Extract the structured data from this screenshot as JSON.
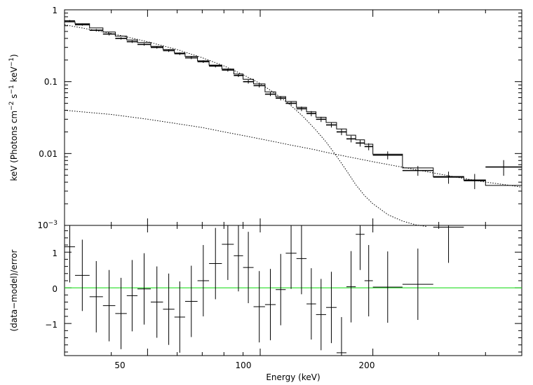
{
  "chart_data": [
    {
      "type": "line",
      "panel": "top",
      "xscale": "log",
      "yscale": "log",
      "xlim": [
        30,
        500
      ],
      "ylim": [
        0.001,
        1
      ],
      "xlabel": "Energy (keV)",
      "ylabel": "keV (Photons cm^-2 s^-1 keV^-1)",
      "ylabel_parts": {
        "base": "keV (Photons cm",
        "e1": "−2",
        "mid": " s",
        "e2": "−1",
        "mid2": " keV",
        "e3": "−1",
        "end": ")"
      },
      "ytick_labels": [
        "1",
        "0.1",
        "0.01",
        "10^-3"
      ],
      "ytick_values": [
        1,
        0.1,
        0.01,
        0.001
      ],
      "bin_edges": [
        30,
        32,
        35,
        38,
        41,
        44,
        47,
        51,
        55,
        59,
        63,
        68,
        73,
        79,
        85,
        90,
        96,
        103,
        110,
        117,
        125,
        133,
        141,
        150,
        160,
        170,
        180,
        190,
        200,
        240,
        290,
        350,
        400,
        500
      ],
      "series": [
        {
          "role": "data",
          "y": [
            0.7,
            0.62,
            0.52,
            0.46,
            0.4,
            0.36,
            0.33,
            0.3,
            0.27,
            0.245,
            0.215,
            0.19,
            0.165,
            0.145,
            0.122,
            0.1,
            0.088,
            0.067,
            0.059,
            0.05,
            0.042,
            0.036,
            0.03,
            0.025,
            0.02,
            0.016,
            0.014,
            0.0125,
            0.0095,
            0.0058,
            0.0047,
            0.0042,
            0.0065
          ],
          "yerr": [
            0.02,
            0.02,
            0.02,
            0.02,
            0.015,
            0.014,
            0.013,
            0.012,
            0.011,
            0.01,
            0.009,
            0.008,
            0.007,
            0.007,
            0.006,
            0.006,
            0.005,
            0.004,
            0.004,
            0.003,
            0.003,
            0.003,
            0.0025,
            0.002,
            0.002,
            0.0017,
            0.0015,
            0.0014,
            0.0012,
            0.0009,
            0.0009,
            0.001,
            0.0016
          ]
        },
        {
          "role": "model",
          "y": [
            0.68,
            0.64,
            0.56,
            0.49,
            0.43,
            0.38,
            0.35,
            0.31,
            0.28,
            0.25,
            0.225,
            0.195,
            0.17,
            0.15,
            0.128,
            0.108,
            0.093,
            0.072,
            0.062,
            0.053,
            0.044,
            0.038,
            0.032,
            0.027,
            0.022,
            0.018,
            0.0155,
            0.0135,
            0.0098,
            0.0063,
            0.0048,
            0.0043,
            0.0036
          ]
        },
        {
          "role": "component-1",
          "x": [
            30,
            40,
            50,
            60,
            70,
            80,
            90,
            100,
            110,
            120,
            130,
            140,
            150,
            160,
            170,
            180,
            190,
            200,
            220,
            240,
            260,
            280
          ],
          "y": [
            0.62,
            0.47,
            0.36,
            0.28,
            0.215,
            0.166,
            0.125,
            0.094,
            0.068,
            0.048,
            0.033,
            0.022,
            0.0145,
            0.0092,
            0.0058,
            0.0037,
            0.0026,
            0.002,
            0.0014,
            0.00115,
            0.00102,
            0.00096
          ]
        },
        {
          "role": "component-2",
          "x": [
            30,
            40,
            50,
            60,
            70,
            80,
            90,
            100,
            110,
            120,
            130,
            140,
            150,
            160,
            170,
            180,
            200,
            250,
            300,
            350,
            400,
            450,
            500
          ],
          "y": [
            0.04,
            0.035,
            0.03,
            0.026,
            0.023,
            0.02,
            0.0178,
            0.016,
            0.0145,
            0.0132,
            0.0122,
            0.0113,
            0.0104,
            0.0097,
            0.0091,
            0.0086,
            0.0077,
            0.0062,
            0.0052,
            0.0045,
            0.004,
            0.0037,
            0.0034
          ]
        }
      ]
    },
    {
      "type": "scatter",
      "panel": "bottom",
      "xscale": "log",
      "xlim": [
        30,
        500
      ],
      "ylim": [
        -1.9,
        1.75
      ],
      "xlabel": "Energy (keV)",
      "ylabel": "(data−model)/error",
      "xtick_labels": [
        "50",
        "100",
        "200"
      ],
      "xtick_values": [
        50,
        100,
        200
      ],
      "ytick_labels": [
        "1",
        "0",
        "−1"
      ],
      "ytick_values": [
        1,
        0,
        -1
      ],
      "reference_line": {
        "y": 0,
        "color": "#22dd22"
      },
      "bin_edges": [
        30,
        32,
        35,
        38,
        41,
        44,
        47,
        51,
        55,
        59,
        63,
        68,
        73,
        79,
        85,
        90,
        96,
        103,
        110,
        117,
        125,
        133,
        141,
        150,
        160,
        170,
        180,
        190,
        200,
        240,
        290,
        350,
        400,
        500
      ],
      "residuals": [
        1.15,
        0.35,
        -0.25,
        -0.5,
        -0.72,
        -0.22,
        -0.03,
        -0.4,
        -0.6,
        -0.82,
        -0.38,
        0.2,
        0.68,
        1.22,
        0.9,
        0.57,
        -0.53,
        -0.47,
        -0.05,
        0.97,
        0.82,
        -0.45,
        -0.75,
        -0.55,
        -1.82,
        0.03,
        1.5,
        0.2,
        0.02,
        0.1,
        1.7,
        0.0,
        0.0
      ],
      "errors": [
        1.0,
        1.0,
        1.0,
        1.0,
        1.0,
        1.0,
        1.0,
        1.0,
        1.0,
        1.0,
        1.0,
        1.0,
        1.0,
        1.0,
        1.0,
        1.0,
        1.0,
        1.0,
        1.0,
        1.0,
        1.0,
        1.0,
        1.0,
        1.0,
        1.0,
        1.0,
        1.0,
        1.0,
        1.0,
        1.0,
        1.0,
        0.0,
        0.0
      ]
    }
  ]
}
